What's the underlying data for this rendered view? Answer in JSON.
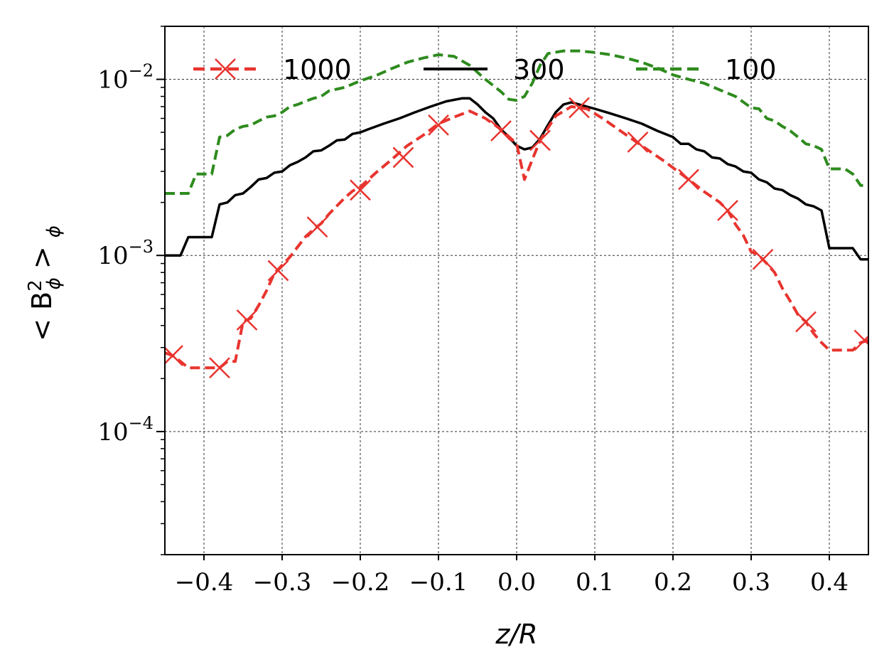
{
  "chart_data": {
    "type": "line",
    "xlabel": "z/R",
    "ylabel_text": "< B",
    "ylabel_sub": "ϕ",
    "ylabel_sup": "2",
    "ylabel_tail": " > ",
    "ylabel_tail_sub": "ϕ",
    "y_scale": "log",
    "xlim": [
      -0.45,
      0.45
    ],
    "ylim": [
      2e-05,
      0.02
    ],
    "grid": true,
    "legend_position": "top",
    "x_ticks": [
      {
        "value": -0.4,
        "label": "−0.4"
      },
      {
        "value": -0.3,
        "label": "−0.3"
      },
      {
        "value": -0.2,
        "label": "−0.2"
      },
      {
        "value": -0.1,
        "label": "−0.1"
      },
      {
        "value": 0.0,
        "label": "0.0"
      },
      {
        "value": 0.1,
        "label": "0.1"
      },
      {
        "value": 0.2,
        "label": "0.2"
      },
      {
        "value": 0.3,
        "label": "0.3"
      },
      {
        "value": 0.4,
        "label": "0.4"
      }
    ],
    "y_ticks": [
      {
        "value": 0.0001,
        "base": "10",
        "exp": "−4"
      },
      {
        "value": 0.001,
        "base": "10",
        "exp": "−3"
      },
      {
        "value": 0.01,
        "base": "10",
        "exp": "−2"
      }
    ],
    "series": [
      {
        "name": "1000",
        "color": "#e8342f",
        "style": "dashed",
        "marker": "x",
        "x": [
          -0.45,
          -0.44,
          -0.43,
          -0.42,
          -0.41,
          -0.4,
          -0.39,
          -0.38,
          -0.37,
          -0.36,
          -0.35,
          -0.34,
          -0.33,
          -0.32,
          -0.31,
          -0.3,
          -0.29,
          -0.28,
          -0.27,
          -0.26,
          -0.25,
          -0.24,
          -0.23,
          -0.22,
          -0.21,
          -0.2,
          -0.18,
          -0.16,
          -0.14,
          -0.12,
          -0.1,
          -0.08,
          -0.06,
          -0.04,
          -0.02,
          0.0,
          0.01,
          0.02,
          0.03,
          0.05,
          0.07,
          0.09,
          0.11,
          0.13,
          0.16,
          0.19,
          0.22,
          0.24,
          0.26,
          0.27,
          0.28,
          0.29,
          0.3,
          0.31,
          0.32,
          0.33,
          0.34,
          0.35,
          0.36,
          0.37,
          0.38,
          0.39,
          0.4,
          0.41,
          0.42,
          0.43,
          0.44,
          0.45
        ],
        "y": [
          0.00028,
          0.00027,
          0.00025,
          0.00023,
          0.00023,
          0.00023,
          0.00023,
          0.00023,
          0.00025,
          0.00025,
          0.00042,
          0.00044,
          0.00052,
          0.00063,
          0.00079,
          0.00088,
          0.00098,
          0.00112,
          0.00128,
          0.0014,
          0.00152,
          0.00172,
          0.00191,
          0.00212,
          0.00232,
          0.00245,
          0.00295,
          0.0035,
          0.0042,
          0.0048,
          0.0056,
          0.0061,
          0.0066,
          0.006,
          0.0052,
          0.0043,
          0.0027,
          0.0035,
          0.0045,
          0.0062,
          0.007,
          0.0068,
          0.006,
          0.0052,
          0.0042,
          0.0034,
          0.0027,
          0.0023,
          0.002,
          0.0018,
          0.0015,
          0.0013,
          0.00105,
          0.001,
          0.0009,
          0.0008,
          0.00065,
          0.00055,
          0.00046,
          0.00042,
          0.00036,
          0.00032,
          0.00029,
          0.00029,
          0.00029,
          0.00029,
          0.00032,
          0.00033
        ],
        "markers_x": [
          -0.44,
          -0.38,
          -0.345,
          -0.305,
          -0.255,
          -0.2,
          -0.145,
          -0.1,
          -0.02,
          0.03,
          0.08,
          0.155,
          0.22,
          0.27,
          0.315,
          0.37,
          0.445
        ],
        "markers_y": [
          0.00027,
          0.00023,
          0.00043,
          0.00082,
          0.00145,
          0.00235,
          0.0036,
          0.0055,
          0.0051,
          0.0045,
          0.0069,
          0.0044,
          0.0027,
          0.0018,
          0.00095,
          0.00042,
          0.00033
        ]
      },
      {
        "name": "300",
        "color": "#000000",
        "style": "solid",
        "marker": "none",
        "x": [
          -0.45,
          -0.43,
          -0.42,
          -0.41,
          -0.4,
          -0.39,
          -0.38,
          -0.37,
          -0.36,
          -0.35,
          -0.34,
          -0.33,
          -0.32,
          -0.31,
          -0.3,
          -0.29,
          -0.28,
          -0.27,
          -0.26,
          -0.25,
          -0.24,
          -0.23,
          -0.22,
          -0.21,
          -0.2,
          -0.19,
          -0.17,
          -0.15,
          -0.13,
          -0.11,
          -0.09,
          -0.07,
          -0.06,
          -0.05,
          -0.04,
          -0.03,
          -0.02,
          -0.01,
          0.0,
          0.01,
          0.02,
          0.03,
          0.04,
          0.05,
          0.06,
          0.07,
          0.08,
          0.1,
          0.12,
          0.14,
          0.16,
          0.18,
          0.2,
          0.21,
          0.22,
          0.23,
          0.24,
          0.25,
          0.26,
          0.27,
          0.28,
          0.29,
          0.3,
          0.31,
          0.32,
          0.33,
          0.34,
          0.35,
          0.36,
          0.37,
          0.38,
          0.39,
          0.4,
          0.41,
          0.42,
          0.43,
          0.44,
          0.45
        ],
        "y": [
          0.001,
          0.001,
          0.00127,
          0.00127,
          0.00127,
          0.00127,
          0.00195,
          0.002,
          0.0022,
          0.00225,
          0.00245,
          0.0027,
          0.00275,
          0.00295,
          0.003,
          0.00325,
          0.0034,
          0.0036,
          0.0039,
          0.00395,
          0.0042,
          0.0045,
          0.00455,
          0.0049,
          0.005,
          0.0052,
          0.0056,
          0.006,
          0.0065,
          0.007,
          0.0075,
          0.0078,
          0.0078,
          0.0072,
          0.0065,
          0.006,
          0.0052,
          0.0047,
          0.0042,
          0.004,
          0.0041,
          0.0046,
          0.0055,
          0.0065,
          0.0072,
          0.0074,
          0.0072,
          0.0068,
          0.0064,
          0.006,
          0.0056,
          0.0051,
          0.0047,
          0.0043,
          0.0043,
          0.004,
          0.0039,
          0.0036,
          0.00355,
          0.0033,
          0.0032,
          0.003,
          0.00295,
          0.0027,
          0.0026,
          0.0024,
          0.00235,
          0.0022,
          0.0021,
          0.00195,
          0.0019,
          0.0018,
          0.0011,
          0.0011,
          0.0011,
          0.0011,
          0.00095,
          0.00095
        ]
      },
      {
        "name": "100",
        "color": "#2e8b1e",
        "style": "dashed",
        "marker": "none",
        "x": [
          -0.45,
          -0.42,
          -0.41,
          -0.4,
          -0.39,
          -0.38,
          -0.37,
          -0.36,
          -0.35,
          -0.34,
          -0.33,
          -0.32,
          -0.31,
          -0.3,
          -0.29,
          -0.28,
          -0.27,
          -0.26,
          -0.25,
          -0.24,
          -0.22,
          -0.2,
          -0.18,
          -0.16,
          -0.14,
          -0.12,
          -0.1,
          -0.08,
          -0.06,
          -0.04,
          -0.02,
          -0.01,
          0.0,
          0.01,
          0.02,
          0.03,
          0.04,
          0.06,
          0.08,
          0.1,
          0.12,
          0.14,
          0.16,
          0.18,
          0.2,
          0.22,
          0.24,
          0.26,
          0.28,
          0.3,
          0.31,
          0.32,
          0.33,
          0.34,
          0.35,
          0.36,
          0.37,
          0.38,
          0.39,
          0.4,
          0.41,
          0.42,
          0.43,
          0.44,
          0.45
        ],
        "y": [
          0.00225,
          0.00225,
          0.0029,
          0.0029,
          0.0029,
          0.0047,
          0.0048,
          0.0052,
          0.0054,
          0.0055,
          0.0058,
          0.0061,
          0.0062,
          0.0065,
          0.007,
          0.0072,
          0.0075,
          0.0078,
          0.008,
          0.0086,
          0.009,
          0.0098,
          0.0105,
          0.0115,
          0.0125,
          0.0132,
          0.0138,
          0.0135,
          0.012,
          0.01,
          0.0085,
          0.0077,
          0.0076,
          0.008,
          0.0095,
          0.012,
          0.014,
          0.0145,
          0.0145,
          0.0142,
          0.0138,
          0.0132,
          0.0125,
          0.0116,
          0.0106,
          0.01,
          0.0095,
          0.0087,
          0.008,
          0.0069,
          0.0068,
          0.006,
          0.0058,
          0.0054,
          0.0051,
          0.0047,
          0.0043,
          0.0042,
          0.004,
          0.0031,
          0.0031,
          0.0031,
          0.0029,
          0.0025,
          0.0025
        ]
      }
    ]
  }
}
